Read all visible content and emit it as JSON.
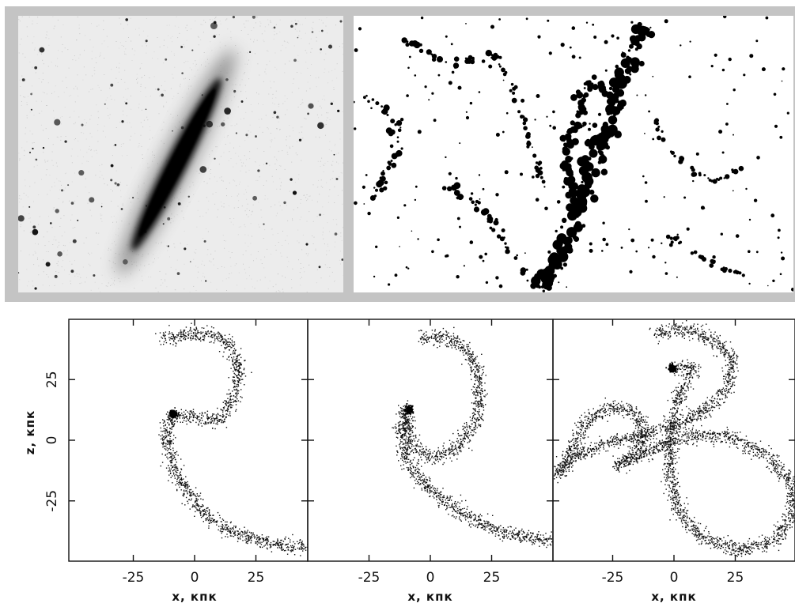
{
  "colors": {
    "frame": "#c4c4c4",
    "ink": "#111111",
    "photo_bg": "#ececec"
  },
  "images": [
    {
      "name": "edge-on-galaxy-photograph",
      "kind": "photograph"
    },
    {
      "name": "tidal-filament-map",
      "kind": "binary-map"
    }
  ],
  "chart_data": [
    {
      "type": "scatter",
      "panel": "left",
      "xlabel": "x, кпк",
      "ylabel": "z, кпк",
      "xticks": [
        -25,
        0,
        25
      ],
      "yticks": [
        25,
        0,
        -25
      ],
      "xlim": [
        -50,
        50
      ],
      "ylim": [
        -50,
        50
      ],
      "dwarf_core": [
        -9,
        11
      ],
      "stream": [
        [
          -13,
          42
        ],
        [
          -4,
          44
        ],
        [
          6,
          44
        ],
        [
          14,
          40
        ],
        [
          18,
          30
        ],
        [
          16,
          18
        ],
        [
          10,
          8
        ],
        [
          -9,
          11
        ],
        [
          -12,
          2
        ],
        [
          -9,
          -10
        ],
        [
          -4,
          -20
        ],
        [
          4,
          -30
        ],
        [
          14,
          -37
        ],
        [
          26,
          -41
        ],
        [
          38,
          -43
        ],
        [
          46,
          -44
        ]
      ]
    },
    {
      "type": "scatter",
      "panel": "middle",
      "xlabel": "x, кпк",
      "xticks": [
        -25,
        0,
        25
      ],
      "xlim": [
        -50,
        50
      ],
      "ylim": [
        -50,
        50
      ],
      "dwarf_core": [
        -9,
        13
      ],
      "stream": [
        [
          -4,
          42
        ],
        [
          6,
          43
        ],
        [
          14,
          39
        ],
        [
          19,
          28
        ],
        [
          20,
          16
        ],
        [
          17,
          5
        ],
        [
          9,
          -4
        ],
        [
          0,
          -7
        ],
        [
          -8,
          -2
        ],
        [
          -10,
          13
        ],
        [
          -12,
          5
        ],
        [
          -10,
          -8
        ],
        [
          -2,
          -18
        ],
        [
          8,
          -27
        ],
        [
          18,
          -33
        ],
        [
          30,
          -38
        ],
        [
          42,
          -40
        ],
        [
          50,
          -41
        ]
      ]
    },
    {
      "type": "scatter",
      "panel": "right",
      "xlabel": "x, кпк",
      "xticks": [
        -25,
        0,
        25
      ],
      "xlim": [
        -50,
        50
      ],
      "ylim": [
        -50,
        50
      ],
      "dwarf_core": [
        -1,
        30
      ],
      "stream": [
        [
          -8,
          44
        ],
        [
          4,
          46
        ],
        [
          16,
          42
        ],
        [
          24,
          34
        ],
        [
          22,
          22
        ],
        [
          12,
          12
        ],
        [
          0,
          6
        ],
        [
          -14,
          2
        ],
        [
          -28,
          -1
        ],
        [
          -40,
          -6
        ],
        [
          -48,
          -14
        ],
        [
          -42,
          -4
        ],
        [
          -36,
          8
        ],
        [
          -26,
          14
        ],
        [
          -16,
          12
        ],
        [
          -12,
          4
        ],
        [
          -16,
          -6
        ],
        [
          -24,
          -10
        ],
        [
          -10,
          -4
        ],
        [
          6,
          2
        ],
        [
          22,
          2
        ],
        [
          38,
          -6
        ],
        [
          48,
          -18
        ],
        [
          48,
          -32
        ],
        [
          40,
          -42
        ],
        [
          26,
          -45
        ],
        [
          12,
          -40
        ],
        [
          2,
          -30
        ],
        [
          -2,
          -14
        ],
        [
          -2,
          4
        ],
        [
          2,
          18
        ],
        [
          8,
          30
        ],
        [
          -1,
          30
        ]
      ]
    }
  ]
}
